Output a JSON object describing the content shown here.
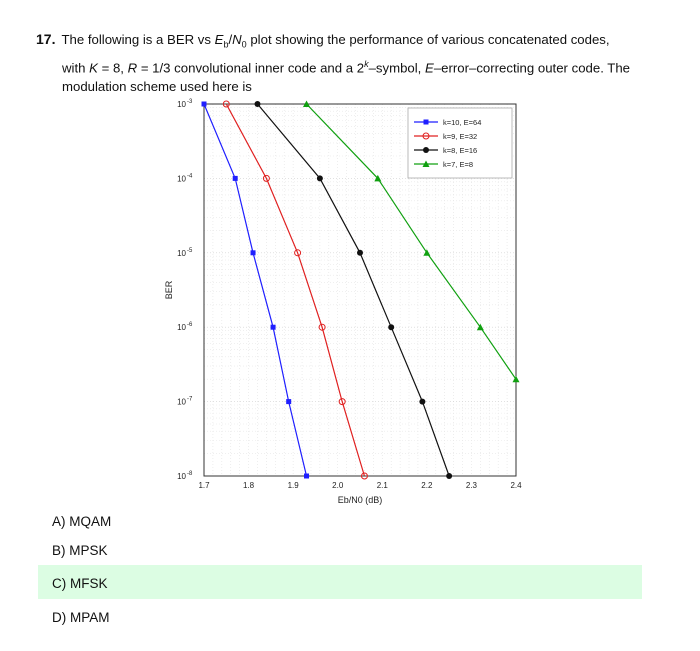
{
  "question": {
    "number": "17.",
    "line1_a": "The following is a BER vs ",
    "line1_b": " plot showing the performance of various concatenated codes,",
    "line2_a": "with ",
    "line2_b": " = 8, ",
    "line2_c": " = 1/3 convolutional inner code and a 2",
    "line2_d": "–symbol, ",
    "line2_e": "–error–correcting outer code. The",
    "line3": "modulation scheme used here is"
  },
  "chart_data": {
    "type": "line",
    "xlabel": "Eb/N0 (dB)",
    "ylabel": "BER",
    "xlim": [
      1.7,
      2.4
    ],
    "ylim_log10": [
      -8,
      -3
    ],
    "xticks": [
      "1.7",
      "1.8",
      "1.9",
      "2.0",
      "2.1",
      "2.2",
      "2.3",
      "2.4"
    ],
    "xtick_values": [
      1.7,
      1.8,
      1.9,
      2.0,
      2.1,
      2.2,
      2.3,
      2.4
    ],
    "ytick_exponents": [
      "-3",
      "-4",
      "-5",
      "-6",
      "-7",
      "-8"
    ],
    "ytick_values": [
      -3,
      -4,
      -5,
      -6,
      -7,
      -8
    ],
    "ytick_base": "10",
    "grid": true,
    "legend_position": "top-right",
    "series": [
      {
        "name": "k=10, E=64",
        "color": "#1f1fff",
        "marker": "square",
        "x": [
          1.7,
          1.77,
          1.81,
          1.855,
          1.89,
          1.93
        ],
        "y": [
          -3,
          -4,
          -5,
          -6,
          -7,
          -8
        ]
      },
      {
        "name": "k=9, E=32",
        "color": "#e02020",
        "marker": "circle-open",
        "x": [
          1.75,
          1.84,
          1.91,
          1.965,
          2.01,
          2.06
        ],
        "y": [
          -3,
          -4,
          -5,
          -6,
          -7,
          -8
        ]
      },
      {
        "name": "k=8, E=16",
        "color": "#111111",
        "marker": "circle",
        "x": [
          1.82,
          1.96,
          2.05,
          2.12,
          2.19,
          2.25
        ],
        "y": [
          -3,
          -4,
          -5,
          -6,
          -7,
          -8
        ]
      },
      {
        "name": "k=7, E=8",
        "color": "#10a010",
        "marker": "triangle",
        "x": [
          1.93,
          2.09,
          2.2,
          2.32,
          2.4
        ],
        "y": [
          -3,
          -4,
          -5,
          -6,
          -6.7
        ]
      }
    ]
  },
  "options": [
    {
      "label": "A) MQAM",
      "selected": false
    },
    {
      "label": "B) MPSK",
      "selected": false
    },
    {
      "label": "C) MFSK",
      "selected": true
    },
    {
      "label": "D) MPAM",
      "selected": false
    }
  ],
  "colors": {
    "selected_bg": "#dcfde3"
  }
}
